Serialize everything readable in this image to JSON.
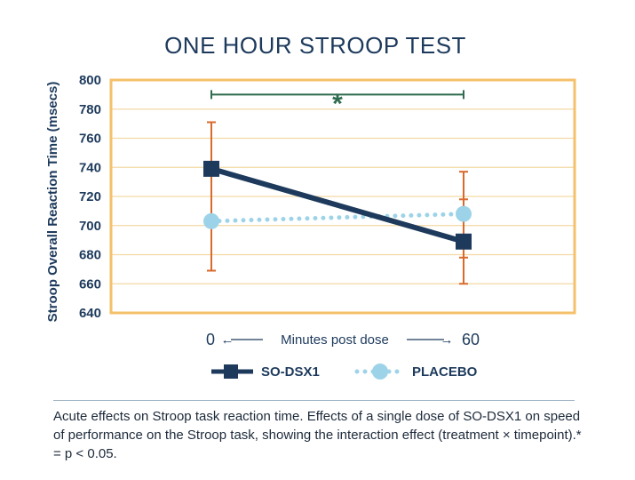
{
  "chart_data": {
    "type": "line",
    "title": "ONE HOUR STROOP TEST",
    "ylabel": "Stroop Overall Reaction Time (msecs)",
    "xlabel": "Minutes post dose",
    "x_arrow_left": "←",
    "x_arrow_right": "→",
    "categories": [
      "0",
      "60"
    ],
    "ylim": [
      640,
      800
    ],
    "yticks": [
      640,
      660,
      680,
      700,
      720,
      740,
      760,
      780,
      800
    ],
    "grid": true,
    "series": [
      {
        "name": "SO-DSX1",
        "values": [
          739,
          689
        ],
        "error_low": [
          669,
          660
        ],
        "error_high": [
          771,
          737
        ],
        "style": "solid",
        "marker": "square",
        "color": "#1d3a5c"
      },
      {
        "name": "PLACEBO",
        "values": [
          703,
          708
        ],
        "error_low": [
          669,
          678
        ],
        "error_high": [
          771,
          718
        ],
        "style": "dotted",
        "marker": "circle",
        "color": "#9dd3e8"
      }
    ],
    "error_bar_color": "#d96a2b",
    "significance": {
      "symbol": "*",
      "from": "0",
      "to": "60",
      "y": 790,
      "color": "#2e6b4f"
    },
    "frame_color": "#f5c06a",
    "grid_color": "#f3d9a4"
  },
  "caption": "Acute effects on Stroop task reaction time. Effects of a single dose of SO-DSX1 on speed of performance on the Stroop task, showing the interaction effect (treatment × timepoint).* = p < 0.05."
}
